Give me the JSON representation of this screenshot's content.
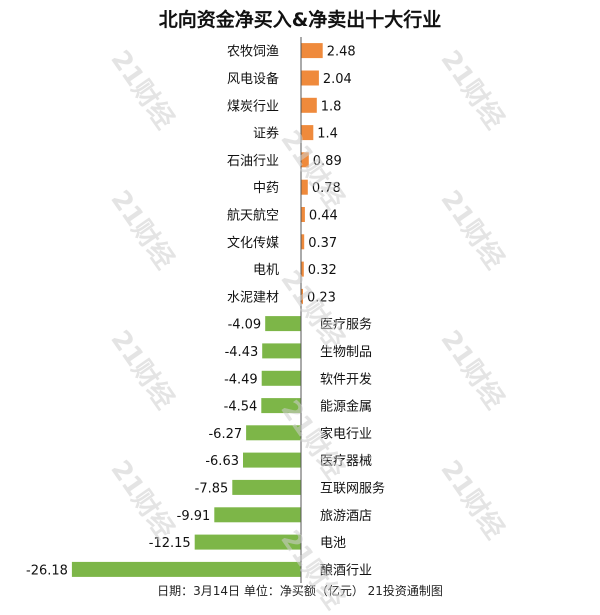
{
  "title": "北向资金净买入&净卖出十大行业",
  "footer": "日期：3月14日 单位：净买额（亿元） 21投资通制图",
  "watermark": "21财经",
  "colors": {
    "positive": "#ef8a3c",
    "negative": "#7db648",
    "axis": "#555555",
    "text": "#111111"
  },
  "chart_data": {
    "type": "bar",
    "orientation": "horizontal",
    "title": "北向资金净买入&净卖出十大行业",
    "unit": "净买额（亿元）",
    "categories": [
      "农牧饲渔",
      "风电设备",
      "煤炭行业",
      "证券",
      "石油行业",
      "中药",
      "航天航空",
      "文化传媒",
      "电机",
      "水泥建材",
      "医疗服务",
      "生物制品",
      "软件开发",
      "能源金属",
      "家电行业",
      "医疗器械",
      "互联网服务",
      "旅游酒店",
      "电池",
      "酿酒行业"
    ],
    "values": [
      2.48,
      2.04,
      1.8,
      1.4,
      0.89,
      0.78,
      0.44,
      0.37,
      0.32,
      0.23,
      -4.09,
      -4.43,
      -4.49,
      -4.54,
      -6.27,
      -6.63,
      -7.85,
      -9.91,
      -12.15,
      -26.18
    ],
    "value_labels": [
      "2.48",
      "2.04",
      "1.8",
      "1.4",
      "0.89",
      "0.78",
      "0.44",
      "0.37",
      "0.32",
      "0.23",
      "-4.09",
      "-4.43",
      "-4.49",
      "-4.54",
      "-6.27",
      "-6.63",
      "-7.85",
      "-9.91",
      "-12.15",
      "-26.18"
    ],
    "xlim": [
      -26.18,
      2.48
    ],
    "grid": false,
    "legend": "none"
  }
}
